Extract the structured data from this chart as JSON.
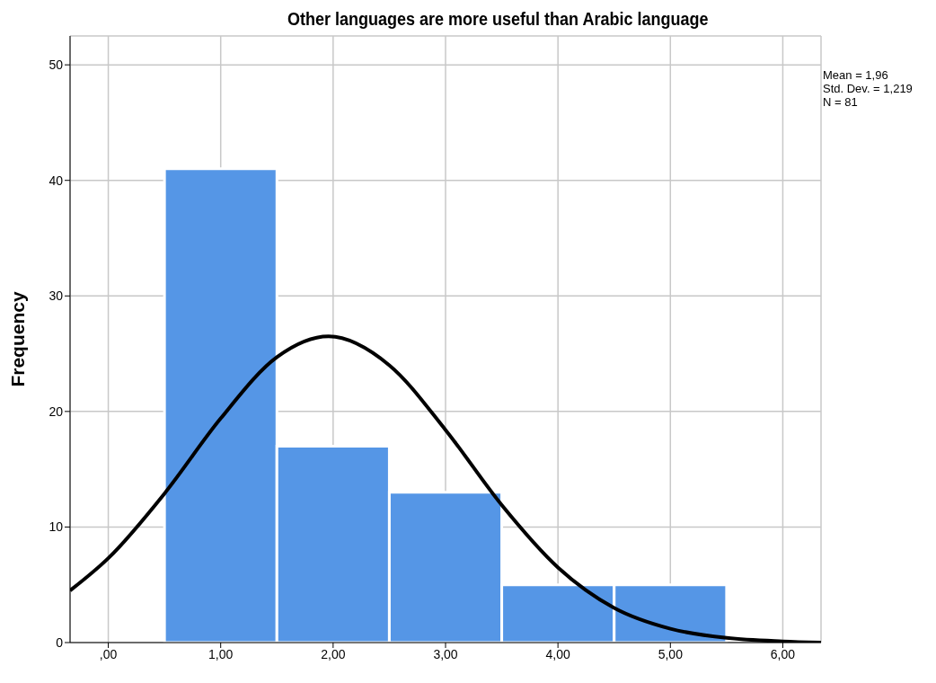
{
  "chart_data": {
    "type": "histogram",
    "title": "Other languages are more useful than Arabic language",
    "ylabel": "Frequency",
    "annotations": [
      "Mean = 1,96",
      "Std. Dev. = 1,219",
      "N = 81"
    ],
    "bins": [
      0.5,
      1.5,
      2.5,
      3.5,
      4.5,
      5.5
    ],
    "values": [
      41,
      17,
      13,
      5,
      5
    ],
    "color": "#5596e6",
    "series": [
      {
        "type": "line",
        "color": "#000000",
        "x": [
          -0.34,
          0,
          0.5,
          1,
          1.5,
          1.96,
          2.5,
          3,
          3.5,
          4,
          4.5,
          5,
          5.5,
          6,
          6.34
        ],
        "values": [
          4.5,
          7.3,
          12.9,
          19.4,
          24.7,
          26.5,
          24,
          18.4,
          11.9,
          6.5,
          3,
          1.2,
          0.4,
          0.1,
          0
        ]
      }
    ],
    "xlim": [
      -0.34,
      6.34
    ],
    "xticks": [
      {
        "value": 0,
        "label": ",00"
      },
      {
        "value": 1,
        "label": "1,00"
      },
      {
        "value": 2,
        "label": "2,00"
      },
      {
        "value": 3,
        "label": "3,00"
      },
      {
        "value": 4,
        "label": "4,00"
      },
      {
        "value": 5,
        "label": "5,00"
      },
      {
        "value": 6,
        "label": "6,00"
      }
    ],
    "ylim": [
      0,
      52.5
    ],
    "yticks": [
      0,
      10,
      20,
      30,
      40,
      50
    ],
    "grid": true
  }
}
